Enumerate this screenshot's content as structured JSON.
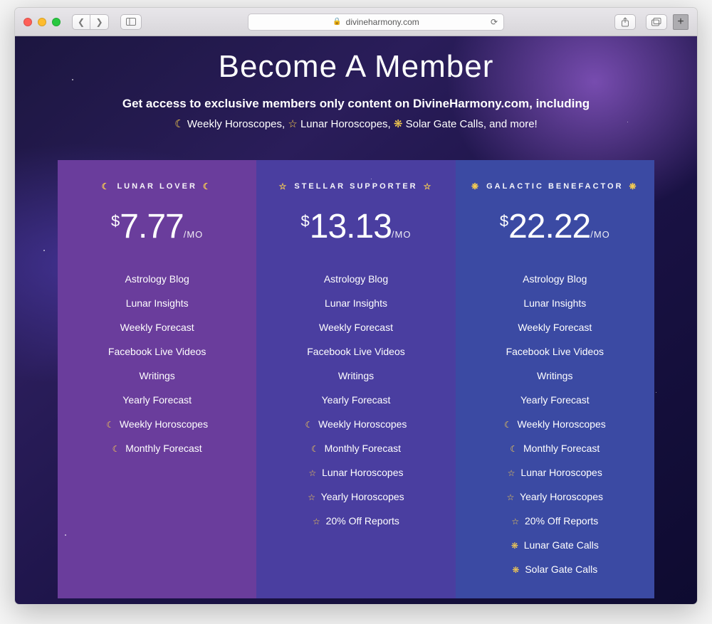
{
  "browser": {
    "url_display": "divineharmony.com",
    "traffic_colors": {
      "red": "#ff5f57",
      "yellow": "#febc2e",
      "green": "#28c840"
    }
  },
  "hero": {
    "title": "Become A Member",
    "subtitle_line1": "Get access to exclusive members only content on DivineHarmony.com, including",
    "bullets": [
      {
        "icon": "moon",
        "text": "Weekly Horoscopes,"
      },
      {
        "icon": "star",
        "text": "Lunar Horoscopes,"
      },
      {
        "icon": "sun",
        "text": "Solar Gate Calls, and more!"
      }
    ]
  },
  "icons": {
    "moon": "☾",
    "star": "☆",
    "sun": "❋"
  },
  "icon_color": "#ffd34d",
  "tier_colors": [
    "#6a3d9c",
    "#4a3ea0",
    "#3b4aa3"
  ],
  "per_label": "/MO",
  "tiers": [
    {
      "name": "Lunar Lover",
      "icon": "moon",
      "price": "7.77",
      "features": [
        {
          "text": "Astrology Blog"
        },
        {
          "text": "Lunar Insights"
        },
        {
          "text": "Weekly Forecast"
        },
        {
          "text": "Facebook Live Videos"
        },
        {
          "text": "Writings"
        },
        {
          "text": "Yearly Forecast"
        },
        {
          "icon": "moon",
          "text": "Weekly Horoscopes"
        },
        {
          "icon": "moon",
          "text": "Monthly Forecast"
        }
      ]
    },
    {
      "name": "Stellar Supporter",
      "icon": "star",
      "price": "13.13",
      "features": [
        {
          "text": "Astrology Blog"
        },
        {
          "text": "Lunar Insights"
        },
        {
          "text": "Weekly Forecast"
        },
        {
          "text": "Facebook Live Videos"
        },
        {
          "text": "Writings"
        },
        {
          "text": "Yearly Forecast"
        },
        {
          "icon": "moon",
          "text": "Weekly Horoscopes"
        },
        {
          "icon": "moon",
          "text": "Monthly Forecast"
        },
        {
          "icon": "star",
          "text": "Lunar Horoscopes"
        },
        {
          "icon": "star",
          "text": "Yearly Horoscopes"
        },
        {
          "icon": "star",
          "text": "20% Off Reports"
        }
      ]
    },
    {
      "name": "Galactic Benefactor",
      "icon": "sun",
      "price": "22.22",
      "features": [
        {
          "text": "Astrology Blog"
        },
        {
          "text": "Lunar Insights"
        },
        {
          "text": "Weekly Forecast"
        },
        {
          "text": "Facebook Live Videos"
        },
        {
          "text": "Writings"
        },
        {
          "text": "Yearly Forecast"
        },
        {
          "icon": "moon",
          "text": "Weekly Horoscopes"
        },
        {
          "icon": "moon",
          "text": "Monthly Forecast"
        },
        {
          "icon": "star",
          "text": "Lunar Horoscopes"
        },
        {
          "icon": "star",
          "text": "Yearly Horoscopes"
        },
        {
          "icon": "star",
          "text": "20% Off Reports"
        },
        {
          "icon": "sun",
          "text": "Lunar Gate Calls"
        },
        {
          "icon": "sun",
          "text": "Solar Gate Calls"
        }
      ]
    }
  ],
  "currency": "$"
}
